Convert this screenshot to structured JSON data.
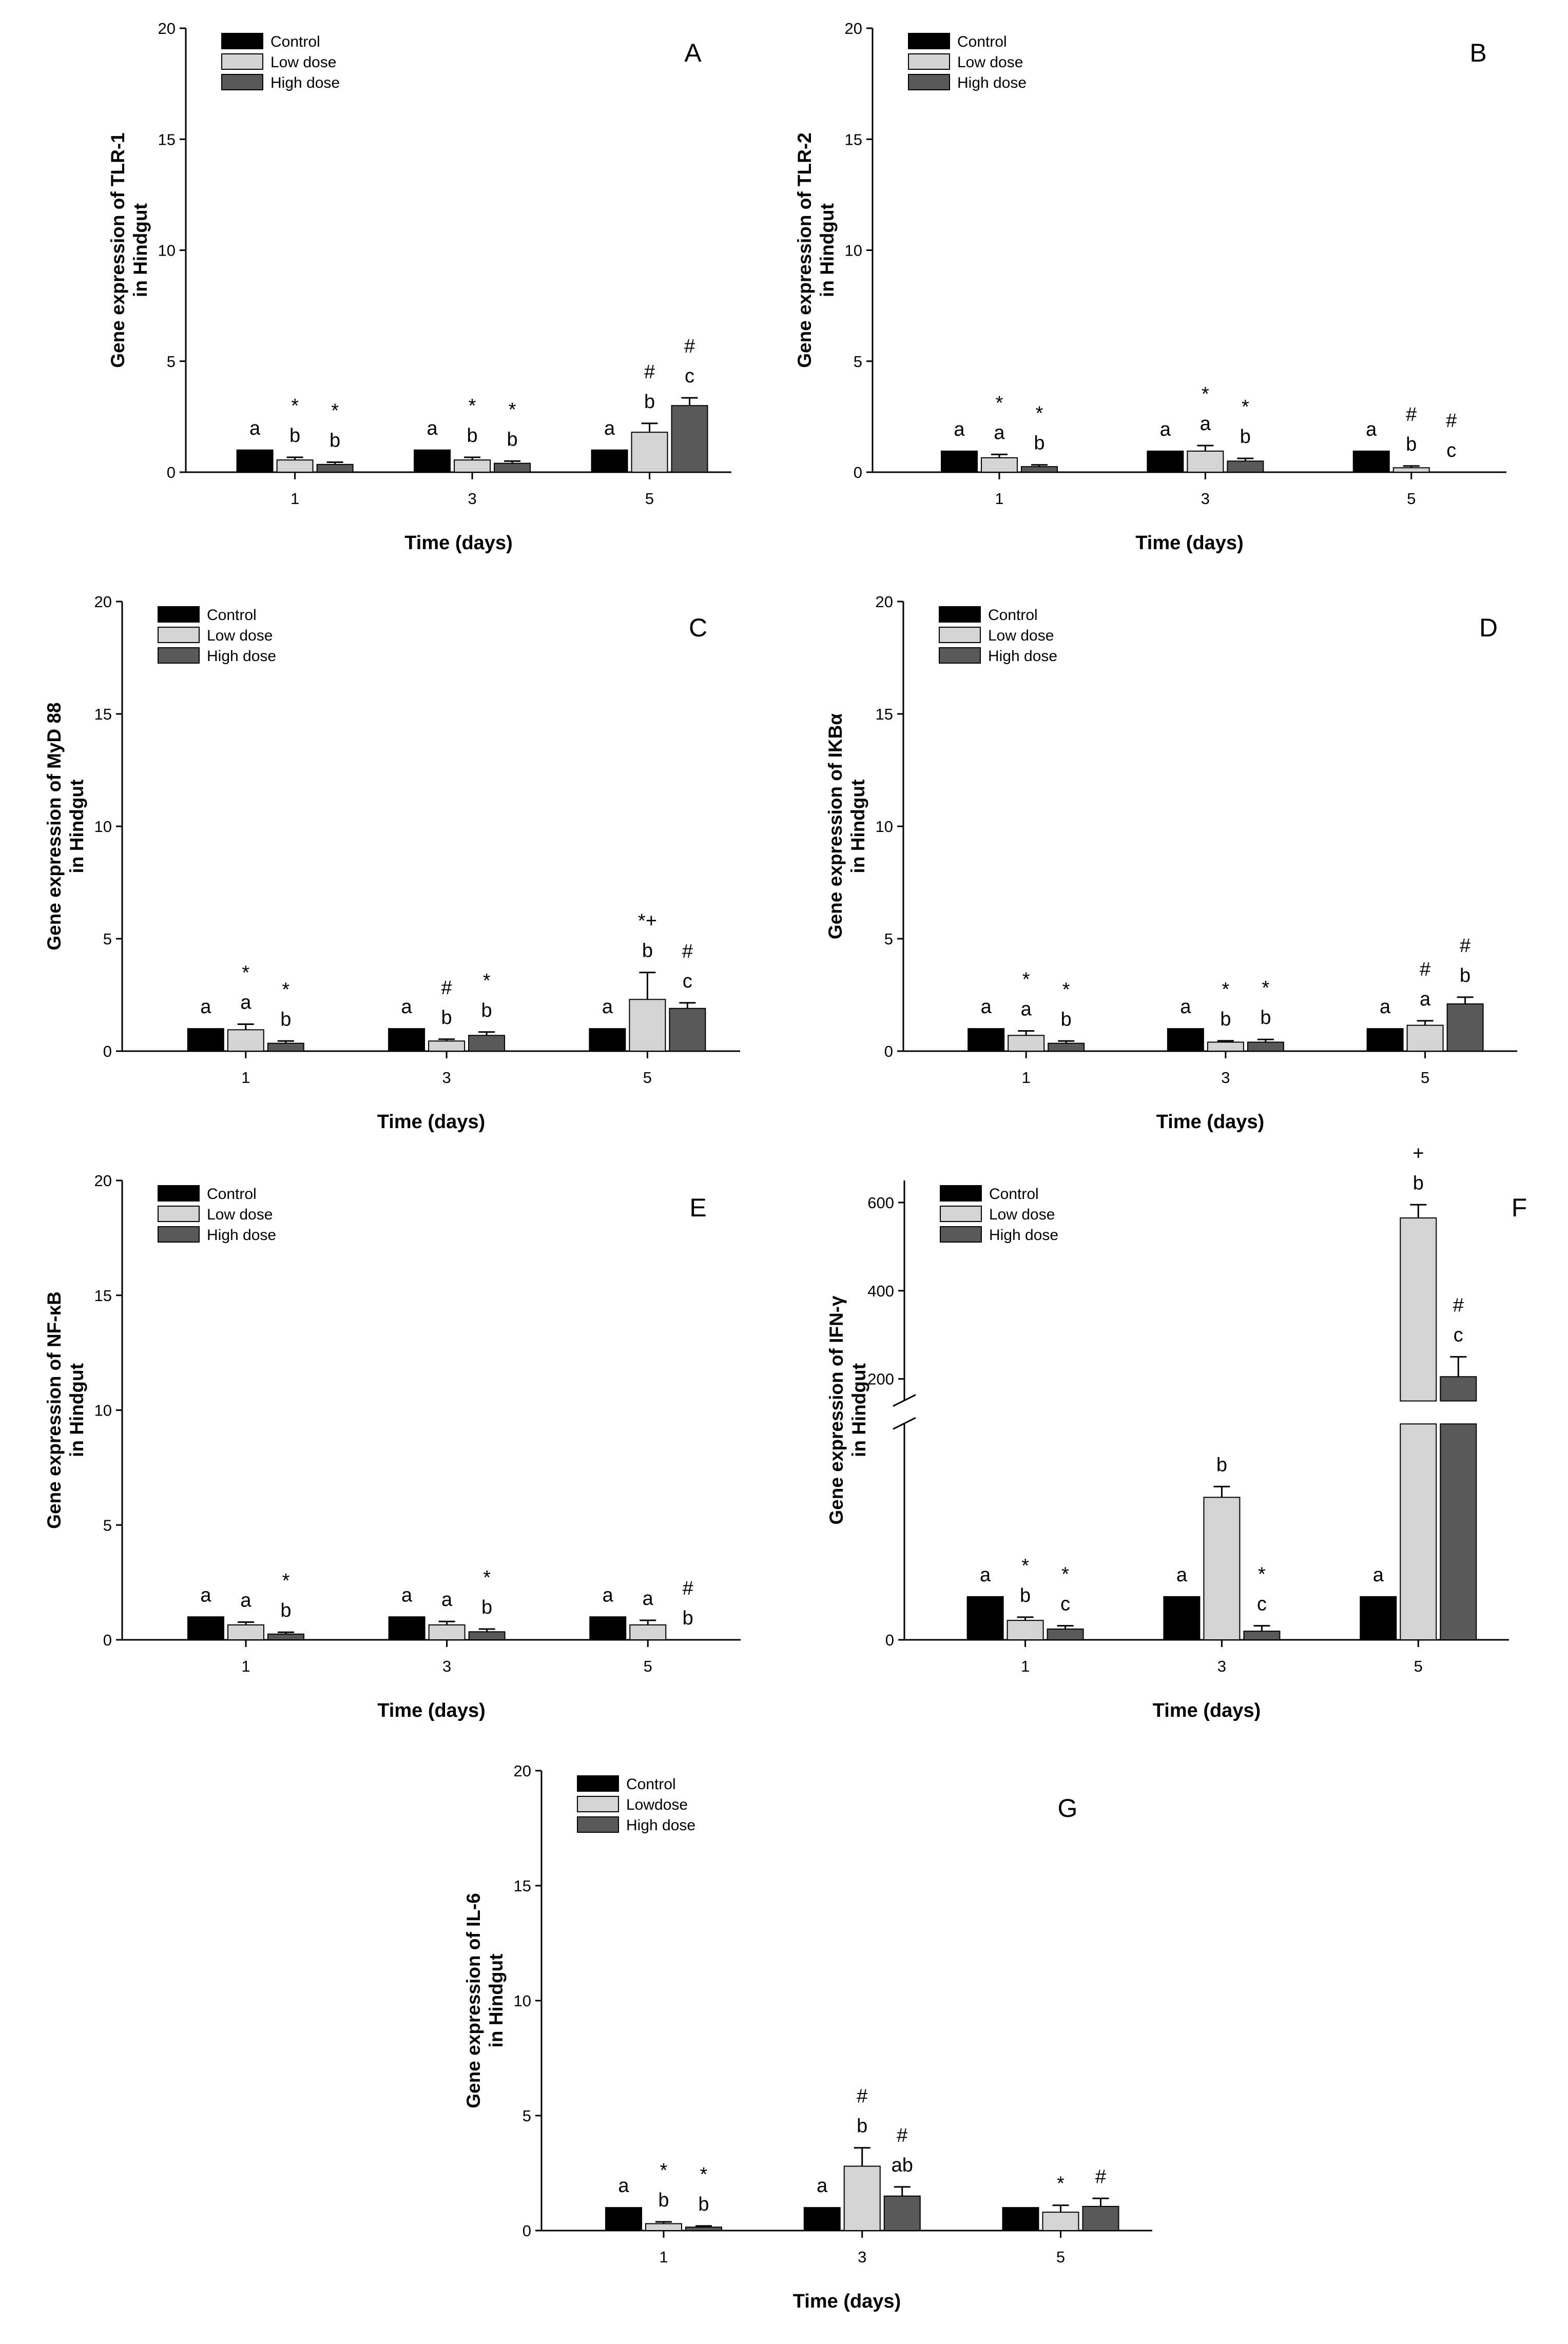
{
  "figure": {
    "series_names": [
      "Control",
      "Low dose",
      "High dose"
    ],
    "series_colors": [
      "#000000",
      "#d4d4d4",
      "#595959"
    ]
  },
  "chart_data": [
    {
      "panel": "A",
      "type": "bar",
      "ylabel": [
        "Gene expression of TLR-1",
        "in Hindgut"
      ],
      "xlabel": "Time (days)",
      "categories": [
        "1",
        "3",
        "5"
      ],
      "ylim": [
        0,
        20
      ],
      "yticks": [
        "0",
        "5",
        "10",
        "15",
        "20"
      ],
      "legend": [
        "Control",
        "Low dose",
        "High dose"
      ],
      "series": [
        {
          "name": "Control",
          "values": [
            1.0,
            1.0,
            1.0
          ],
          "errors": [
            0,
            0,
            0
          ]
        },
        {
          "name": "Low dose",
          "values": [
            0.55,
            0.55,
            1.8
          ],
          "errors": [
            0.12,
            0.12,
            0.4
          ]
        },
        {
          "name": "High dose",
          "values": [
            0.35,
            0.4,
            3.0
          ],
          "errors": [
            0.1,
            0.1,
            0.35
          ]
        }
      ],
      "annotations": [
        [
          [
            "a"
          ],
          [
            "*",
            "b"
          ],
          [
            "*",
            "b"
          ]
        ],
        [
          [
            "a"
          ],
          [
            "*",
            "b"
          ],
          [
            "*",
            "b"
          ]
        ],
        [
          [
            "a"
          ],
          [
            "#",
            "b"
          ],
          [
            "#",
            "c"
          ]
        ]
      ]
    },
    {
      "panel": "B",
      "type": "bar",
      "ylabel": [
        "Gene expression of TLR-2",
        "in Hindgut"
      ],
      "xlabel": "Time (days)",
      "categories": [
        "1",
        "3",
        "5"
      ],
      "ylim": [
        0,
        20
      ],
      "yticks": [
        "0",
        "5",
        "10",
        "15",
        "20"
      ],
      "legend": [
        "Control",
        "Low dose",
        "High dose"
      ],
      "series": [
        {
          "name": "Control",
          "values": [
            0.95,
            0.95,
            0.95
          ],
          "errors": [
            0,
            0,
            0
          ]
        },
        {
          "name": "Low dose",
          "values": [
            0.65,
            0.95,
            0.2
          ],
          "errors": [
            0.15,
            0.25,
            0.08
          ]
        },
        {
          "name": "High dose",
          "values": [
            0.25,
            0.5,
            0.0
          ],
          "errors": [
            0.08,
            0.12,
            0
          ]
        }
      ],
      "annotations": [
        [
          [
            "a"
          ],
          [
            "*",
            "a"
          ],
          [
            "*",
            "b"
          ]
        ],
        [
          [
            "a"
          ],
          [
            "*",
            "a"
          ],
          [
            "*",
            "b"
          ]
        ],
        [
          [
            "a"
          ],
          [
            "#",
            "b"
          ],
          [
            "#",
            "c"
          ]
        ]
      ]
    },
    {
      "panel": "C",
      "type": "bar",
      "ylabel": [
        "Gene expression of MyD 88",
        "in Hindgut"
      ],
      "xlabel": "Time (days)",
      "categories": [
        "1",
        "3",
        "5"
      ],
      "ylim": [
        0,
        20
      ],
      "yticks": [
        "0",
        "5",
        "10",
        "15",
        "20"
      ],
      "legend": [
        "Control",
        "Low dose",
        "High dose"
      ],
      "series": [
        {
          "name": "Control",
          "values": [
            1.0,
            1.0,
            1.0
          ],
          "errors": [
            0,
            0,
            0
          ]
        },
        {
          "name": "Low dose",
          "values": [
            0.95,
            0.45,
            2.3
          ],
          "errors": [
            0.25,
            0.08,
            1.2
          ]
        },
        {
          "name": "High dose",
          "values": [
            0.35,
            0.7,
            1.9
          ],
          "errors": [
            0.1,
            0.15,
            0.25
          ]
        }
      ],
      "annotations": [
        [
          [
            "a"
          ],
          [
            "*",
            "a"
          ],
          [
            "*",
            "b"
          ]
        ],
        [
          [
            "a"
          ],
          [
            "#",
            "b"
          ],
          [
            "*",
            "b"
          ]
        ],
        [
          [
            "a"
          ],
          [
            "*+",
            "b"
          ],
          [
            "#",
            "c"
          ]
        ]
      ]
    },
    {
      "panel": "D",
      "type": "bar",
      "ylabel": [
        "Gene expression of IKBα",
        "in Hindgut"
      ],
      "xlabel": "Time (days)",
      "categories": [
        "1",
        "3",
        "5"
      ],
      "ylim": [
        0,
        20
      ],
      "yticks": [
        "0",
        "5",
        "10",
        "15",
        "20"
      ],
      "legend": [
        "Control",
        "Low dose",
        "High dose"
      ],
      "series": [
        {
          "name": "Control",
          "values": [
            1.0,
            1.0,
            1.0
          ],
          "errors": [
            0,
            0,
            0
          ]
        },
        {
          "name": "Low dose",
          "values": [
            0.7,
            0.4,
            1.15
          ],
          "errors": [
            0.2,
            0.06,
            0.2
          ]
        },
        {
          "name": "High dose",
          "values": [
            0.35,
            0.4,
            2.1
          ],
          "errors": [
            0.1,
            0.12,
            0.3
          ]
        }
      ],
      "annotations": [
        [
          [
            "a"
          ],
          [
            "*",
            "a"
          ],
          [
            "*",
            "b"
          ]
        ],
        [
          [
            "a"
          ],
          [
            "*",
            "b"
          ],
          [
            "*",
            "b"
          ]
        ],
        [
          [
            "a"
          ],
          [
            "#",
            "a"
          ],
          [
            "#",
            "b"
          ]
        ]
      ]
    },
    {
      "panel": "E",
      "type": "bar",
      "ylabel": [
        "Gene expression of NF-κB",
        "in Hindgut"
      ],
      "xlabel": "Time (days)",
      "categories": [
        "1",
        "3",
        "5"
      ],
      "ylim": [
        0,
        20
      ],
      "yticks": [
        "0",
        "5",
        "10",
        "15",
        "20"
      ],
      "legend": [
        "Control",
        "Low dose",
        "High dose"
      ],
      "series": [
        {
          "name": "Control",
          "values": [
            1.0,
            1.0,
            1.0
          ],
          "errors": [
            0,
            0,
            0
          ]
        },
        {
          "name": "Low dose",
          "values": [
            0.65,
            0.65,
            0.65
          ],
          "errors": [
            0.12,
            0.15,
            0.2
          ]
        },
        {
          "name": "High dose",
          "values": [
            0.25,
            0.35,
            0.0
          ],
          "errors": [
            0.08,
            0.12,
            0
          ]
        }
      ],
      "annotations": [
        [
          [
            "a"
          ],
          [
            "a"
          ],
          [
            "*",
            "b"
          ]
        ],
        [
          [
            "a"
          ],
          [
            "a"
          ],
          [
            "*",
            "b"
          ]
        ],
        [
          [
            "a"
          ],
          [
            "a"
          ],
          [
            "#",
            "b"
          ]
        ]
      ]
    },
    {
      "panel": "F",
      "type": "bar",
      "ylabel": [
        "Gene expression of IFN-γ",
        "in Hindgut"
      ],
      "xlabel": "Time (days)",
      "categories": [
        "1",
        "3",
        "5"
      ],
      "ylim": [
        0,
        20
      ],
      "ylim_upper": [
        150,
        650
      ],
      "axis_break": true,
      "yticks": [
        "0",
        "200",
        "400",
        "600"
      ],
      "legend": [
        "Control",
        "Low dose",
        "High dose"
      ],
      "series": [
        {
          "name": "Control",
          "values": [
            4.0,
            4.0,
            4.0
          ],
          "errors": [
            0,
            0,
            0
          ]
        },
        {
          "name": "Low dose",
          "values": [
            1.8,
            13.2,
            565
          ],
          "errors": [
            0.3,
            1.0,
            30
          ]
        },
        {
          "name": "High dose",
          "values": [
            1.0,
            0.8,
            205
          ],
          "errors": [
            0.3,
            0.5,
            45
          ]
        }
      ],
      "annotations": [
        [
          [
            "a"
          ],
          [
            "*",
            "b"
          ],
          [
            "*",
            "c"
          ]
        ],
        [
          [
            "a"
          ],
          [
            "b"
          ],
          [
            "*",
            "c"
          ]
        ],
        [
          [
            "a"
          ],
          [
            "+",
            "b"
          ],
          [
            "#",
            "c"
          ]
        ]
      ]
    },
    {
      "panel": "G",
      "type": "bar",
      "ylabel": [
        "Gene expression of IL-6",
        "in Hindgut"
      ],
      "xlabel": "Time (days)",
      "categories": [
        "1",
        "3",
        "5"
      ],
      "ylim": [
        0,
        20
      ],
      "yticks": [
        "0",
        "5",
        "10",
        "15",
        "20"
      ],
      "legend": [
        "Control",
        "Lowdose",
        "High dose"
      ],
      "series": [
        {
          "name": "Control",
          "values": [
            1.0,
            1.0,
            1.0
          ],
          "errors": [
            0,
            0,
            0
          ]
        },
        {
          "name": "Lowdose",
          "values": [
            0.3,
            2.8,
            0.8
          ],
          "errors": [
            0.08,
            0.8,
            0.3
          ]
        },
        {
          "name": "High dose",
          "values": [
            0.15,
            1.5,
            1.05
          ],
          "errors": [
            0.05,
            0.4,
            0.35
          ]
        }
      ],
      "annotations": [
        [
          [
            "a"
          ],
          [
            "*",
            "b"
          ],
          [
            "*",
            "b"
          ]
        ],
        [
          [
            "a"
          ],
          [
            "#",
            "b"
          ],
          [
            "#",
            "ab"
          ]
        ],
        [
          [],
          [
            "*"
          ],
          [
            "#"
          ]
        ]
      ]
    }
  ]
}
